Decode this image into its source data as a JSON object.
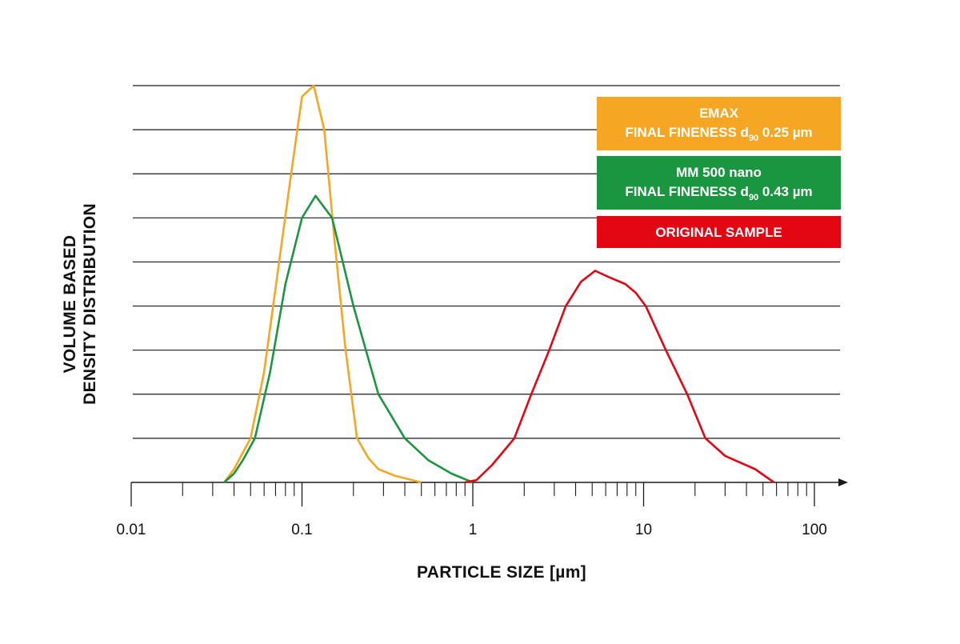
{
  "chart_data": {
    "type": "line",
    "x_scale": "log",
    "xlim": [
      0.01,
      100
    ],
    "x_tick_labels": [
      "0.01",
      "0.1",
      "1",
      "10",
      "100"
    ],
    "x_tick_values": [
      0.01,
      0.1,
      1,
      10,
      100
    ],
    "xlabel": "PARTICLE SIZE [µm]",
    "ylabel_lines": [
      "VOLUME BASED",
      "DENSITY DISTRIBUTION"
    ],
    "y_ticks_shown": false,
    "ylim": [
      0,
      9
    ],
    "grid": "horizontal",
    "grid_values": [
      1,
      2,
      3,
      4,
      5,
      6,
      7,
      8,
      9
    ],
    "legend_placement": "top-right",
    "series": [
      {
        "name": "EMAX FINAL FINENESS d90 0.25 µm",
        "legend_lines": [
          "EMAX",
          "FINAL FINENESS d",
          "90",
          " 0.25 µm"
        ],
        "color": "#f5a623",
        "x": [
          0.035,
          0.04,
          0.05,
          0.06,
          0.07,
          0.085,
          0.1,
          0.117,
          0.135,
          0.155,
          0.18,
          0.21,
          0.245,
          0.28,
          0.35,
          0.5
        ],
        "y": [
          0,
          0.3,
          1.0,
          2.5,
          4.4,
          6.8,
          8.75,
          9.0,
          8.0,
          5.5,
          3.0,
          1.0,
          0.55,
          0.3,
          0.15,
          0
        ]
      },
      {
        "name": "MM 500 nano FINAL FINENESS d90 0.43 µm",
        "legend_lines": [
          "MM 500 nano",
          "FINAL FINENESS d",
          "90",
          " 0.43 µm"
        ],
        "color": "#1a9641",
        "x": [
          0.035,
          0.04,
          0.045,
          0.053,
          0.065,
          0.08,
          0.1,
          0.12,
          0.15,
          0.2,
          0.28,
          0.4,
          0.55,
          0.75,
          1.0
        ],
        "y": [
          0,
          0.2,
          0.5,
          1.0,
          2.5,
          4.5,
          6.0,
          6.5,
          6.0,
          4.0,
          2.0,
          1.0,
          0.5,
          0.2,
          0
        ]
      },
      {
        "name": "ORIGINAL SAMPLE",
        "legend_lines": [
          "ORIGINAL SAMPLE"
        ],
        "color": "#e30613",
        "x": [
          0.9,
          1.05,
          1.3,
          1.75,
          2.2,
          2.8,
          3.5,
          4.3,
          5.2,
          6.3,
          7.8,
          9.0,
          10.3,
          13.5,
          18.0,
          23.0,
          30.0,
          45.0,
          58.0
        ],
        "y": [
          0,
          0.05,
          0.4,
          1.0,
          2.0,
          3.0,
          4.0,
          4.55,
          4.8,
          4.65,
          4.5,
          4.3,
          4.0,
          3.0,
          2.0,
          1.0,
          0.6,
          0.3,
          0
        ]
      }
    ]
  }
}
